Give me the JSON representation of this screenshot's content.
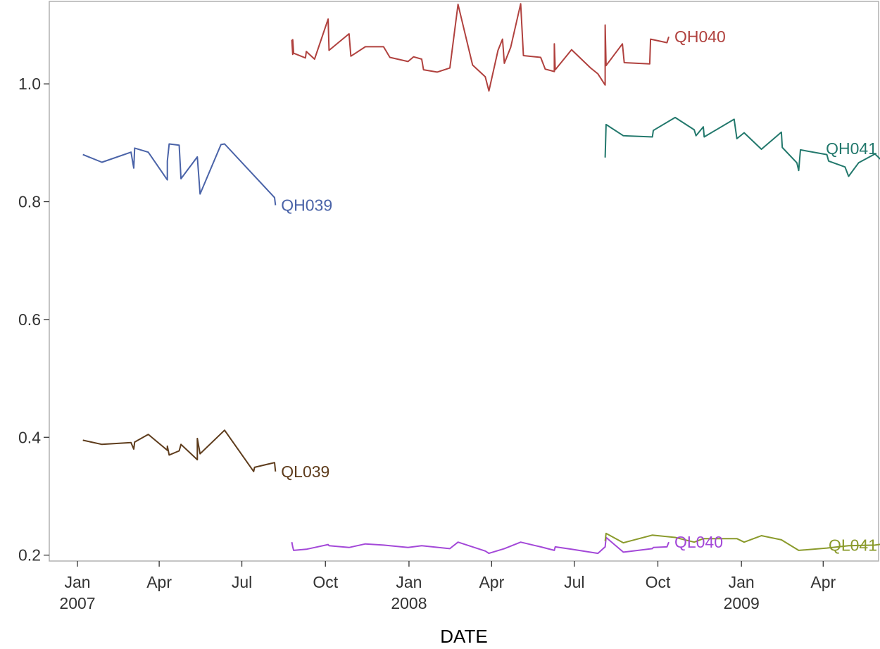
{
  "chart_data": {
    "type": "line",
    "xlabel": "DATE",
    "ylabel": "",
    "xlim": [
      "2006-12-01",
      "2009-06-01"
    ],
    "ylim": [
      0.19,
      1.14
    ],
    "grid": false,
    "x_ticks": [
      {
        "date": "2007-01-01",
        "label": [
          "Jan",
          "2007"
        ]
      },
      {
        "date": "2007-04-01",
        "label": [
          "Apr"
        ]
      },
      {
        "date": "2007-07-01",
        "label": [
          "Jul"
        ]
      },
      {
        "date": "2007-10-01",
        "label": [
          "Oct"
        ]
      },
      {
        "date": "2008-01-01",
        "label": [
          "Jan",
          "2008"
        ]
      },
      {
        "date": "2008-04-01",
        "label": [
          "Apr"
        ]
      },
      {
        "date": "2008-07-01",
        "label": [
          "Jul"
        ]
      },
      {
        "date": "2008-10-01",
        "label": [
          "Oct"
        ]
      },
      {
        "date": "2009-01-01",
        "label": [
          "Jan",
          "2009"
        ]
      },
      {
        "date": "2009-04-01",
        "label": [
          "Apr"
        ]
      }
    ],
    "y_ticks": [
      {
        "value": 0.2,
        "label": "0.2"
      },
      {
        "value": 0.4,
        "label": "0.4"
      },
      {
        "value": 0.6,
        "label": "0.6"
      },
      {
        "value": 0.8,
        "label": "0.8"
      },
      {
        "value": 1.0,
        "label": "1.0"
      }
    ],
    "series": [
      {
        "name": "QH039",
        "color": "#4A63A8",
        "points": [
          [
            "2007-01-07",
            0.88
          ],
          [
            "2007-01-28",
            0.867
          ],
          [
            "2007-03-01",
            0.884
          ],
          [
            "2007-03-04",
            0.857
          ],
          [
            "2007-03-05",
            0.891
          ],
          [
            "2007-03-20",
            0.884
          ],
          [
            "2007-04-10",
            0.837
          ],
          [
            "2007-04-10",
            0.869
          ],
          [
            "2007-04-12",
            0.898
          ],
          [
            "2007-04-23",
            0.896
          ],
          [
            "2007-04-25",
            0.839
          ],
          [
            "2007-05-13",
            0.876
          ],
          [
            "2007-05-16",
            0.813
          ],
          [
            "2007-06-08",
            0.897
          ],
          [
            "2007-06-12",
            0.898
          ],
          [
            "2007-08-06",
            0.807
          ],
          [
            "2007-08-07",
            0.794
          ]
        ]
      },
      {
        "name": "QH040",
        "color": "#B0413E",
        "points": [
          [
            "2007-08-25",
            1.075
          ],
          [
            "2007-08-26",
            1.05
          ],
          [
            "2007-08-26",
            1.075
          ],
          [
            "2007-08-27",
            1.052
          ],
          [
            "2007-09-09",
            1.044
          ],
          [
            "2007-09-10",
            1.055
          ],
          [
            "2007-09-19",
            1.042
          ],
          [
            "2007-10-04",
            1.11
          ],
          [
            "2007-10-05",
            1.057
          ],
          [
            "2007-10-27",
            1.085
          ],
          [
            "2007-10-29",
            1.047
          ],
          [
            "2007-11-14",
            1.063
          ],
          [
            "2007-12-04",
            1.063
          ],
          [
            "2007-12-11",
            1.045
          ],
          [
            "2007-12-31",
            1.038
          ],
          [
            "2008-01-06",
            1.046
          ],
          [
            "2008-01-15",
            1.042
          ],
          [
            "2008-01-17",
            1.024
          ],
          [
            "2008-02-01",
            1.02
          ],
          [
            "2008-02-15",
            1.027
          ],
          [
            "2008-02-24",
            1.135
          ],
          [
            "2008-03-11",
            1.032
          ],
          [
            "2008-03-25",
            1.012
          ],
          [
            "2008-03-29",
            0.988
          ],
          [
            "2008-04-08",
            1.057
          ],
          [
            "2008-04-13",
            1.076
          ],
          [
            "2008-04-15",
            1.035
          ],
          [
            "2008-04-22",
            1.062
          ],
          [
            "2008-05-03",
            1.136
          ],
          [
            "2008-05-06",
            1.048
          ],
          [
            "2008-05-25",
            1.045
          ],
          [
            "2008-05-30",
            1.025
          ],
          [
            "2008-06-09",
            1.021
          ],
          [
            "2008-06-09",
            1.068
          ],
          [
            "2008-06-10",
            1.024
          ],
          [
            "2008-06-28",
            1.058
          ],
          [
            "2008-07-19",
            1.027
          ],
          [
            "2008-07-27",
            1.017
          ],
          [
            "2008-08-04",
            0.998
          ],
          [
            "2008-08-04",
            1.1
          ],
          [
            "2008-08-05",
            1.031
          ],
          [
            "2008-08-23",
            1.068
          ],
          [
            "2008-08-25",
            1.036
          ],
          [
            "2008-09-22",
            1.034
          ],
          [
            "2008-09-23",
            1.076
          ],
          [
            "2008-10-11",
            1.07
          ],
          [
            "2008-10-13",
            1.08
          ]
        ]
      },
      {
        "name": "QH041",
        "color": "#22786C",
        "points": [
          [
            "2008-08-04",
            0.875
          ],
          [
            "2008-08-05",
            0.931
          ],
          [
            "2008-08-24",
            0.912
          ],
          [
            "2008-09-25",
            0.91
          ],
          [
            "2008-09-26",
            0.921
          ],
          [
            "2008-10-20",
            0.943
          ],
          [
            "2008-11-10",
            0.922
          ],
          [
            "2008-11-12",
            0.912
          ],
          [
            "2008-11-20",
            0.927
          ],
          [
            "2008-11-21",
            0.91
          ],
          [
            "2008-12-24",
            0.94
          ],
          [
            "2008-12-27",
            0.907
          ],
          [
            "2009-01-04",
            0.917
          ],
          [
            "2009-01-23",
            0.889
          ],
          [
            "2009-02-14",
            0.918
          ],
          [
            "2009-02-15",
            0.892
          ],
          [
            "2009-03-03",
            0.866
          ],
          [
            "2009-03-05",
            0.853
          ],
          [
            "2009-03-07",
            0.888
          ],
          [
            "2009-04-05",
            0.88
          ],
          [
            "2009-04-07",
            0.869
          ],
          [
            "2009-04-25",
            0.859
          ],
          [
            "2009-04-29",
            0.843
          ],
          [
            "2009-05-10",
            0.866
          ],
          [
            "2009-05-28",
            0.881
          ],
          [
            "2009-06-10",
            0.862
          ],
          [
            "2009-06-11",
            0.89
          ]
        ]
      },
      {
        "name": "QL039",
        "color": "#5E3C1C",
        "points": [
          [
            "2007-01-07",
            0.395
          ],
          [
            "2007-01-28",
            0.388
          ],
          [
            "2007-03-01",
            0.391
          ],
          [
            "2007-03-04",
            0.38
          ],
          [
            "2007-03-05",
            0.392
          ],
          [
            "2007-03-20",
            0.405
          ],
          [
            "2007-04-10",
            0.378
          ],
          [
            "2007-04-10",
            0.385
          ],
          [
            "2007-04-12",
            0.37
          ],
          [
            "2007-04-23",
            0.377
          ],
          [
            "2007-04-25",
            0.388
          ],
          [
            "2007-05-13",
            0.362
          ],
          [
            "2007-05-13",
            0.398
          ],
          [
            "2007-05-16",
            0.372
          ],
          [
            "2007-06-12",
            0.412
          ],
          [
            "2007-07-14",
            0.342
          ],
          [
            "2007-07-15",
            0.349
          ],
          [
            "2007-08-06",
            0.357
          ],
          [
            "2007-08-07",
            0.342
          ]
        ]
      },
      {
        "name": "QL040",
        "color": "#A348D8",
        "points": [
          [
            "2007-08-25",
            0.222
          ],
          [
            "2007-08-26",
            0.214
          ],
          [
            "2007-08-27",
            0.208
          ],
          [
            "2007-09-10",
            0.21
          ],
          [
            "2007-09-19",
            0.213
          ],
          [
            "2007-10-04",
            0.218
          ],
          [
            "2007-10-05",
            0.216
          ],
          [
            "2007-10-27",
            0.213
          ],
          [
            "2007-11-14",
            0.219
          ],
          [
            "2007-12-04",
            0.217
          ],
          [
            "2007-12-31",
            0.213
          ],
          [
            "2008-01-15",
            0.216
          ],
          [
            "2008-02-15",
            0.211
          ],
          [
            "2008-02-24",
            0.222
          ],
          [
            "2008-03-25",
            0.207
          ],
          [
            "2008-03-29",
            0.203
          ],
          [
            "2008-04-15",
            0.211
          ],
          [
            "2008-05-03",
            0.222
          ],
          [
            "2008-05-25",
            0.214
          ],
          [
            "2008-06-09",
            0.208
          ],
          [
            "2008-06-10",
            0.214
          ],
          [
            "2008-06-28",
            0.21
          ],
          [
            "2008-07-27",
            0.203
          ],
          [
            "2008-08-04",
            0.214
          ],
          [
            "2008-08-05",
            0.23
          ],
          [
            "2008-08-24",
            0.205
          ],
          [
            "2008-09-25",
            0.211
          ],
          [
            "2008-09-26",
            0.213
          ],
          [
            "2008-10-11",
            0.214
          ],
          [
            "2008-10-13",
            0.222
          ]
        ]
      },
      {
        "name": "QL041",
        "color": "#8A9A2B",
        "points": [
          [
            "2008-08-04",
            0.224
          ],
          [
            "2008-08-05",
            0.237
          ],
          [
            "2008-08-24",
            0.221
          ],
          [
            "2008-09-25",
            0.234
          ],
          [
            "2008-10-20",
            0.23
          ],
          [
            "2008-11-10",
            0.222
          ],
          [
            "2008-11-20",
            0.228
          ],
          [
            "2008-12-27",
            0.228
          ],
          [
            "2009-01-04",
            0.222
          ],
          [
            "2009-01-23",
            0.233
          ],
          [
            "2009-02-14",
            0.226
          ],
          [
            "2009-03-05",
            0.208
          ],
          [
            "2009-04-05",
            0.212
          ],
          [
            "2009-04-29",
            0.216
          ],
          [
            "2009-05-28",
            0.217
          ],
          [
            "2009-06-10",
            0.22
          ],
          [
            "2009-06-11",
            0.217
          ]
        ]
      }
    ]
  }
}
